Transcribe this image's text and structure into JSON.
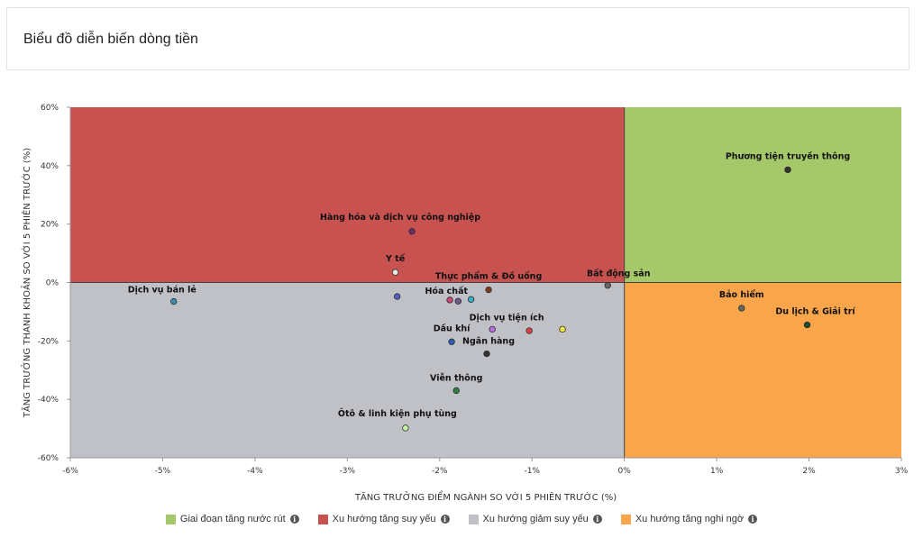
{
  "card": {
    "title": "Biểu đồ diễn biến dòng tiền"
  },
  "chart_data": {
    "type": "scatter",
    "title": "",
    "xlabel": "TĂNG TRƯỞNG ĐIỂM NGÀNH SO VỚI 5 PHIÊN TRƯỚC (%)",
    "ylabel": "TĂNG TRƯỞNG THANH KHOẢN SO VỚI 5 PHIÊN TRƯỚC (%)",
    "xlim": [
      -6,
      3
    ],
    "ylim": [
      -60,
      60
    ],
    "x_ticks": [
      -6,
      -5,
      -4,
      -3,
      -2,
      -1,
      0,
      1,
      2,
      3
    ],
    "x_tick_labels": [
      "-6%",
      "-5%",
      "-4%",
      "-3%",
      "-2%",
      "-1%",
      "0%",
      "1%",
      "2%",
      "3%"
    ],
    "y_ticks": [
      60,
      40,
      20,
      0,
      -20,
      -40,
      -60
    ],
    "y_tick_labels": [
      "60%",
      "40%",
      "20%",
      "0%",
      "-20%",
      "-40%",
      "-60%"
    ],
    "grid": false,
    "legend_placement": "bottom",
    "quadrants": [
      {
        "name": "Giai đoạn tăng nước rút",
        "color": "#a5c96a",
        "x": [
          0,
          3
        ],
        "y": [
          0,
          60
        ]
      },
      {
        "name": "Xu hướng tăng suy yếu",
        "color": "#c85250",
        "x": [
          -6,
          0
        ],
        "y": [
          0,
          60
        ]
      },
      {
        "name": "Xu hướng giảm suy yếu",
        "color": "#c0c1c6",
        "x": [
          -6,
          0
        ],
        "y": [
          -60,
          0
        ]
      },
      {
        "name": "Xu hướng tăng nghi ngờ",
        "color": "#f9a54b",
        "x": [
          0,
          3
        ],
        "y": [
          -60,
          0
        ]
      }
    ],
    "points": [
      {
        "name": "Phương tiện truyền thông",
        "x": 1.77,
        "y": 38.6,
        "color": "#333333"
      },
      {
        "name": "Hàng hóa và dịch vụ công nghiệp",
        "x": -2.3,
        "y": 17.5,
        "color": "#6b2f6b"
      },
      {
        "name": "Y tế",
        "x": -2.48,
        "y": 3.5,
        "color": "#e6e6e6"
      },
      {
        "name": "Bất động sản",
        "x": -0.18,
        "y": -1.0,
        "color": "#666666"
      },
      {
        "name": "Dịch vụ bán lẻ",
        "x": -4.88,
        "y": -6.5,
        "color": "#3b8fae"
      },
      {
        "name": "Thực phẩm & Đồ uống",
        "x": -1.47,
        "y": -2.5,
        "color": "#7a3e1e"
      },
      {
        "name": "",
        "x": -2.46,
        "y": -4.8,
        "color": "#5560c8"
      },
      {
        "name": "",
        "x": -1.89,
        "y": -6.0,
        "color": "#c94a7a"
      },
      {
        "name": "Hóa chất",
        "x": -1.8,
        "y": -6.4,
        "color": "#6a5a8a"
      },
      {
        "name": "",
        "x": -1.66,
        "y": -5.8,
        "color": "#3aaecb"
      },
      {
        "name": "Bảo hiểm",
        "x": 1.27,
        "y": -8.8,
        "color": "#666666"
      },
      {
        "name": "Du lịch & Giải trí",
        "x": 1.98,
        "y": -14.5,
        "color": "#1d4e2f"
      },
      {
        "name": "Dịch vụ tiện ích",
        "x": -1.43,
        "y": -16.0,
        "color": "#b86ee0"
      },
      {
        "name": "",
        "x": -1.03,
        "y": -16.5,
        "color": "#d94141"
      },
      {
        "name": "",
        "x": -0.67,
        "y": -16.0,
        "color": "#f0e441"
      },
      {
        "name": "Dầu khí",
        "x": -1.87,
        "y": -20.3,
        "color": "#2e5fb0"
      },
      {
        "name": "Ngân hàng",
        "x": -1.49,
        "y": -24.4,
        "color": "#333333"
      },
      {
        "name": "Viễn thông",
        "x": -1.82,
        "y": -37.0,
        "color": "#2f7f3f"
      },
      {
        "name": "Ôtô & linh kiện phụ tùng",
        "x": -2.37,
        "y": -49.8,
        "color": "#c6f0a0"
      }
    ]
  },
  "legend": [
    {
      "label": "Giai đoạn tăng nước rút",
      "color": "#a5c96a",
      "icon": "info-icon"
    },
    {
      "label": "Xu hướng tăng suy yếu",
      "color": "#c85250",
      "icon": "info-icon"
    },
    {
      "label": "Xu hướng giảm suy yếu",
      "color": "#c0c1c6",
      "icon": "info-icon"
    },
    {
      "label": "Xu hướng tăng nghi ngờ",
      "color": "#f9a54b",
      "icon": "info-icon"
    }
  ],
  "icons": {
    "info_glyph": "i"
  }
}
